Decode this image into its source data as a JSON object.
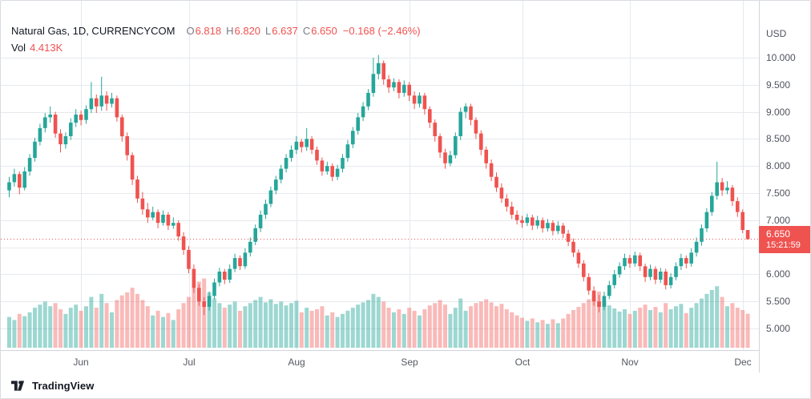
{
  "header": {
    "symbol_title": "Natural Gas, 1D, CURRENCYCOM",
    "open_label": "O",
    "open": "6.818",
    "high_label": "H",
    "high": "6.820",
    "low_label": "L",
    "low": "6.637",
    "close_label": "C",
    "close": "6.650",
    "change": "−0.168 (−2.46%)",
    "volume_label": "Vol",
    "volume": "4.413K"
  },
  "price_axis": {
    "currency": "USD",
    "ticks": [
      "10.000",
      "9.500",
      "9.000",
      "8.500",
      "8.000",
      "7.500",
      "7.000",
      "6.500",
      "6.000",
      "5.500",
      "5.000"
    ],
    "current_price": "6.650",
    "countdown": "15:21:59"
  },
  "time_axis": {
    "labels": [
      "Jun",
      "Jul",
      "Aug",
      "Sep",
      "Oct",
      "Nov",
      "Dec"
    ]
  },
  "watermark": "TradingView",
  "colors": {
    "up": "#26a69a",
    "down": "#ef5350",
    "volume_up": "rgba(38,166,154,0.45)",
    "volume_down": "rgba(239,83,80,0.40)",
    "grid": "#e6e9ee",
    "axis_text": "#50535e",
    "text": "#131722",
    "badge_bg": "#ef5350",
    "badge_text": "#ffffff"
  },
  "chart_data": {
    "type": "candlestick",
    "title": "Natural Gas",
    "interval": "1D",
    "exchange": "CURRENCYCOM",
    "ylabel": "USD",
    "ylim": [
      4.85,
      11.05
    ],
    "grid": true,
    "volume_unit": "K",
    "month_start_indices": [
      14,
      35,
      56,
      78,
      100,
      121,
      143
    ],
    "last_bar": {
      "open": 6.818,
      "high": 6.82,
      "low": 6.637,
      "close": 6.65,
      "volume_k": 4.413,
      "change": -0.168,
      "change_pct": -2.46
    },
    "candles_format": [
      "open",
      "high",
      "low",
      "close",
      "volume_k"
    ],
    "candles": [
      [
        7.55,
        7.8,
        7.42,
        7.7,
        4.0
      ],
      [
        7.7,
        7.95,
        7.62,
        7.85,
        3.6
      ],
      [
        7.85,
        7.9,
        7.48,
        7.6,
        4.4
      ],
      [
        7.6,
        7.98,
        7.55,
        7.9,
        4.1
      ],
      [
        7.9,
        8.22,
        7.82,
        8.15,
        4.6
      ],
      [
        8.15,
        8.52,
        8.08,
        8.45,
        5.2
      ],
      [
        8.45,
        8.78,
        8.38,
        8.7,
        5.6
      ],
      [
        8.7,
        8.98,
        8.62,
        8.9,
        6.0
      ],
      [
        8.9,
        9.1,
        8.8,
        8.95,
        5.4
      ],
      [
        8.95,
        9.0,
        8.52,
        8.6,
        5.8
      ],
      [
        8.6,
        8.68,
        8.25,
        8.4,
        5.0
      ],
      [
        8.4,
        8.62,
        8.32,
        8.55,
        4.4
      ],
      [
        8.55,
        8.88,
        8.48,
        8.8,
        5.2
      ],
      [
        8.8,
        9.05,
        8.72,
        8.95,
        5.6
      ],
      [
        8.95,
        9.02,
        8.75,
        8.85,
        4.8
      ],
      [
        8.85,
        9.12,
        8.78,
        9.05,
        5.4
      ],
      [
        9.05,
        9.55,
        8.98,
        9.25,
        6.6
      ],
      [
        9.25,
        9.32,
        8.98,
        9.1,
        5.2
      ],
      [
        9.1,
        9.65,
        9.02,
        9.3,
        7.0
      ],
      [
        9.3,
        9.38,
        9.02,
        9.15,
        5.8
      ],
      [
        9.15,
        9.35,
        9.08,
        9.25,
        4.6
      ],
      [
        9.25,
        9.3,
        8.82,
        8.9,
        6.2
      ],
      [
        8.9,
        8.95,
        8.45,
        8.55,
        6.8
      ],
      [
        8.55,
        8.62,
        8.1,
        8.2,
        7.2
      ],
      [
        8.2,
        8.25,
        7.65,
        7.75,
        7.8
      ],
      [
        7.75,
        7.82,
        7.32,
        7.4,
        7.0
      ],
      [
        7.4,
        7.52,
        7.1,
        7.2,
        6.2
      ],
      [
        7.2,
        7.32,
        6.95,
        7.05,
        5.4
      ],
      [
        7.05,
        7.25,
        7.0,
        7.15,
        4.2
      ],
      [
        7.15,
        7.2,
        6.85,
        6.95,
        4.8
      ],
      [
        6.95,
        7.18,
        6.9,
        7.1,
        4.0
      ],
      [
        7.1,
        7.15,
        6.82,
        6.9,
        4.5
      ],
      [
        6.9,
        7.05,
        6.84,
        6.95,
        3.6
      ],
      [
        6.95,
        7.0,
        6.62,
        6.7,
        5.0
      ],
      [
        6.7,
        6.78,
        6.36,
        6.45,
        5.8
      ],
      [
        6.45,
        6.52,
        6.02,
        6.1,
        6.6
      ],
      [
        6.1,
        6.18,
        5.66,
        5.75,
        7.8
      ],
      [
        5.75,
        5.82,
        5.42,
        5.5,
        8.6
      ],
      [
        5.5,
        5.58,
        5.25,
        5.4,
        9.0
      ],
      [
        5.4,
        5.68,
        5.33,
        5.6,
        7.2
      ],
      [
        5.6,
        5.92,
        5.54,
        5.85,
        6.4
      ],
      [
        5.85,
        6.12,
        5.78,
        6.05,
        5.8
      ],
      [
        6.05,
        6.1,
        5.82,
        5.9,
        5.2
      ],
      [
        5.9,
        6.18,
        5.84,
        6.1,
        5.6
      ],
      [
        6.1,
        6.38,
        6.04,
        6.3,
        6.0
      ],
      [
        6.3,
        6.35,
        6.08,
        6.15,
        4.8
      ],
      [
        6.15,
        6.48,
        6.1,
        6.4,
        5.4
      ],
      [
        6.4,
        6.68,
        6.33,
        6.6,
        5.8
      ],
      [
        6.6,
        6.92,
        6.54,
        6.85,
        6.2
      ],
      [
        6.85,
        7.18,
        6.78,
        7.1,
        6.6
      ],
      [
        7.1,
        7.38,
        7.02,
        7.3,
        5.9
      ],
      [
        7.3,
        7.62,
        7.24,
        7.55,
        6.3
      ],
      [
        7.55,
        7.82,
        7.48,
        7.75,
        5.7
      ],
      [
        7.75,
        8.02,
        7.68,
        7.95,
        6.0
      ],
      [
        7.95,
        8.22,
        7.88,
        8.15,
        5.5
      ],
      [
        8.15,
        8.38,
        8.08,
        8.3,
        5.8
      ],
      [
        8.3,
        8.55,
        8.22,
        8.45,
        6.1
      ],
      [
        8.45,
        8.5,
        8.25,
        8.35,
        4.6
      ],
      [
        8.35,
        8.7,
        8.28,
        8.5,
        5.2
      ],
      [
        8.5,
        8.55,
        8.22,
        8.3,
        4.8
      ],
      [
        8.3,
        8.36,
        8.02,
        8.1,
        5.0
      ],
      [
        8.1,
        8.16,
        7.82,
        7.9,
        5.4
      ],
      [
        7.9,
        8.08,
        7.84,
        8.0,
        4.2
      ],
      [
        8.0,
        8.05,
        7.72,
        7.8,
        4.6
      ],
      [
        7.8,
        8.02,
        7.74,
        7.95,
        4.0
      ],
      [
        7.95,
        8.22,
        7.88,
        8.15,
        4.4
      ],
      [
        8.15,
        8.48,
        8.08,
        8.4,
        4.8
      ],
      [
        8.4,
        8.72,
        8.33,
        8.65,
        5.2
      ],
      [
        8.65,
        8.98,
        8.58,
        8.9,
        5.6
      ],
      [
        8.9,
        9.18,
        8.83,
        9.1,
        5.9
      ],
      [
        9.1,
        9.42,
        9.03,
        9.35,
        6.2
      ],
      [
        9.35,
        10.0,
        9.28,
        9.7,
        7.0
      ],
      [
        9.7,
        10.05,
        9.6,
        9.9,
        6.6
      ],
      [
        9.9,
        9.95,
        9.5,
        9.6,
        6.0
      ],
      [
        9.6,
        9.68,
        9.35,
        9.45,
        5.2
      ],
      [
        9.45,
        9.62,
        9.38,
        9.55,
        4.6
      ],
      [
        9.55,
        9.6,
        9.25,
        9.35,
        5.0
      ],
      [
        9.35,
        9.58,
        9.28,
        9.5,
        4.4
      ],
      [
        9.5,
        9.55,
        9.2,
        9.3,
        5.2
      ],
      [
        9.3,
        9.38,
        9.05,
        9.15,
        4.8
      ],
      [
        9.15,
        9.36,
        9.08,
        9.3,
        4.2
      ],
      [
        9.3,
        9.35,
        8.95,
        9.05,
        5.0
      ],
      [
        9.05,
        9.1,
        8.7,
        8.8,
        5.5
      ],
      [
        8.8,
        8.86,
        8.45,
        8.55,
        5.8
      ],
      [
        8.55,
        8.6,
        8.15,
        8.25,
        6.2
      ],
      [
        8.25,
        8.32,
        7.95,
        8.05,
        5.6
      ],
      [
        8.05,
        8.28,
        8.0,
        8.2,
        4.4
      ],
      [
        8.2,
        8.62,
        8.14,
        8.55,
        5.2
      ],
      [
        8.55,
        9.08,
        8.48,
        9.0,
        6.4
      ],
      [
        9.0,
        9.16,
        8.88,
        9.1,
        4.8
      ],
      [
        9.1,
        9.15,
        8.75,
        8.85,
        5.4
      ],
      [
        8.85,
        8.9,
        8.5,
        8.6,
        5.8
      ],
      [
        8.6,
        8.66,
        8.2,
        8.3,
        6.0
      ],
      [
        8.3,
        8.36,
        7.95,
        8.05,
        6.3
      ],
      [
        8.05,
        8.12,
        7.72,
        7.8,
        5.9
      ],
      [
        7.8,
        7.88,
        7.52,
        7.6,
        5.4
      ],
      [
        7.6,
        7.68,
        7.32,
        7.4,
        5.7
      ],
      [
        7.4,
        7.48,
        7.16,
        7.25,
        5.0
      ],
      [
        7.25,
        7.34,
        7.02,
        7.1,
        4.6
      ],
      [
        7.1,
        7.18,
        6.92,
        7.0,
        4.2
      ],
      [
        7.0,
        7.08,
        6.86,
        6.95,
        3.9
      ],
      [
        6.95,
        7.12,
        6.89,
        7.05,
        3.5
      ],
      [
        7.05,
        7.1,
        6.82,
        6.9,
        3.8
      ],
      [
        6.9,
        7.08,
        6.84,
        7.0,
        3.3
      ],
      [
        7.0,
        7.05,
        6.77,
        6.85,
        3.6
      ],
      [
        6.85,
        7.02,
        6.79,
        6.95,
        3.1
      ],
      [
        6.95,
        7.0,
        6.72,
        6.8,
        3.7
      ],
      [
        6.8,
        6.98,
        6.74,
        6.9,
        3.2
      ],
      [
        6.9,
        6.95,
        6.67,
        6.75,
        3.8
      ],
      [
        6.75,
        6.82,
        6.52,
        6.6,
        4.4
      ],
      [
        6.6,
        6.66,
        6.32,
        6.4,
        4.9
      ],
      [
        6.4,
        6.46,
        6.12,
        6.2,
        5.3
      ],
      [
        6.2,
        6.26,
        5.87,
        5.95,
        5.8
      ],
      [
        5.95,
        6.02,
        5.62,
        5.7,
        6.3
      ],
      [
        5.7,
        5.78,
        5.42,
        5.5,
        6.8
      ],
      [
        5.5,
        5.62,
        5.3,
        5.4,
        7.3
      ],
      [
        5.4,
        5.68,
        5.34,
        5.6,
        6.0
      ],
      [
        5.6,
        5.88,
        5.54,
        5.8,
        5.5
      ],
      [
        5.8,
        6.08,
        5.74,
        6.0,
        5.1
      ],
      [
        6.0,
        6.22,
        5.94,
        6.15,
        4.7
      ],
      [
        6.15,
        6.38,
        6.08,
        6.3,
        5.0
      ],
      [
        6.3,
        6.36,
        6.12,
        6.2,
        4.4
      ],
      [
        6.2,
        6.42,
        6.14,
        6.35,
        4.8
      ],
      [
        6.35,
        6.4,
        6.06,
        6.15,
        5.2
      ],
      [
        6.15,
        6.2,
        5.86,
        5.95,
        5.6
      ],
      [
        5.95,
        6.18,
        5.89,
        6.1,
        4.9
      ],
      [
        6.1,
        6.15,
        5.82,
        5.9,
        5.3
      ],
      [
        5.9,
        6.12,
        5.84,
        6.05,
        4.6
      ],
      [
        6.05,
        6.1,
        5.72,
        5.8,
        5.8
      ],
      [
        5.8,
        6.02,
        5.74,
        5.95,
        5.0
      ],
      [
        5.95,
        6.22,
        5.89,
        6.15,
        5.4
      ],
      [
        6.15,
        6.38,
        6.08,
        6.3,
        5.7
      ],
      [
        6.3,
        6.35,
        6.11,
        6.2,
        4.5
      ],
      [
        6.2,
        6.48,
        6.14,
        6.4,
        5.2
      ],
      [
        6.4,
        6.68,
        6.33,
        6.6,
        5.8
      ],
      [
        6.6,
        6.92,
        6.53,
        6.85,
        6.4
      ],
      [
        6.85,
        7.22,
        6.78,
        7.15,
        7.0
      ],
      [
        7.15,
        7.52,
        7.08,
        7.45,
        7.5
      ],
      [
        7.45,
        8.08,
        7.38,
        7.7,
        8.0
      ],
      [
        7.7,
        7.78,
        7.45,
        7.55,
        6.6
      ],
      [
        7.55,
        7.72,
        7.48,
        7.6,
        5.4
      ],
      [
        7.6,
        7.65,
        7.26,
        7.35,
        5.8
      ],
      [
        7.35,
        7.42,
        7.06,
        7.15,
        5.2
      ],
      [
        7.15,
        7.2,
        6.76,
        6.82,
        4.9
      ],
      [
        6.818,
        6.82,
        6.637,
        6.65,
        4.413
      ]
    ]
  }
}
